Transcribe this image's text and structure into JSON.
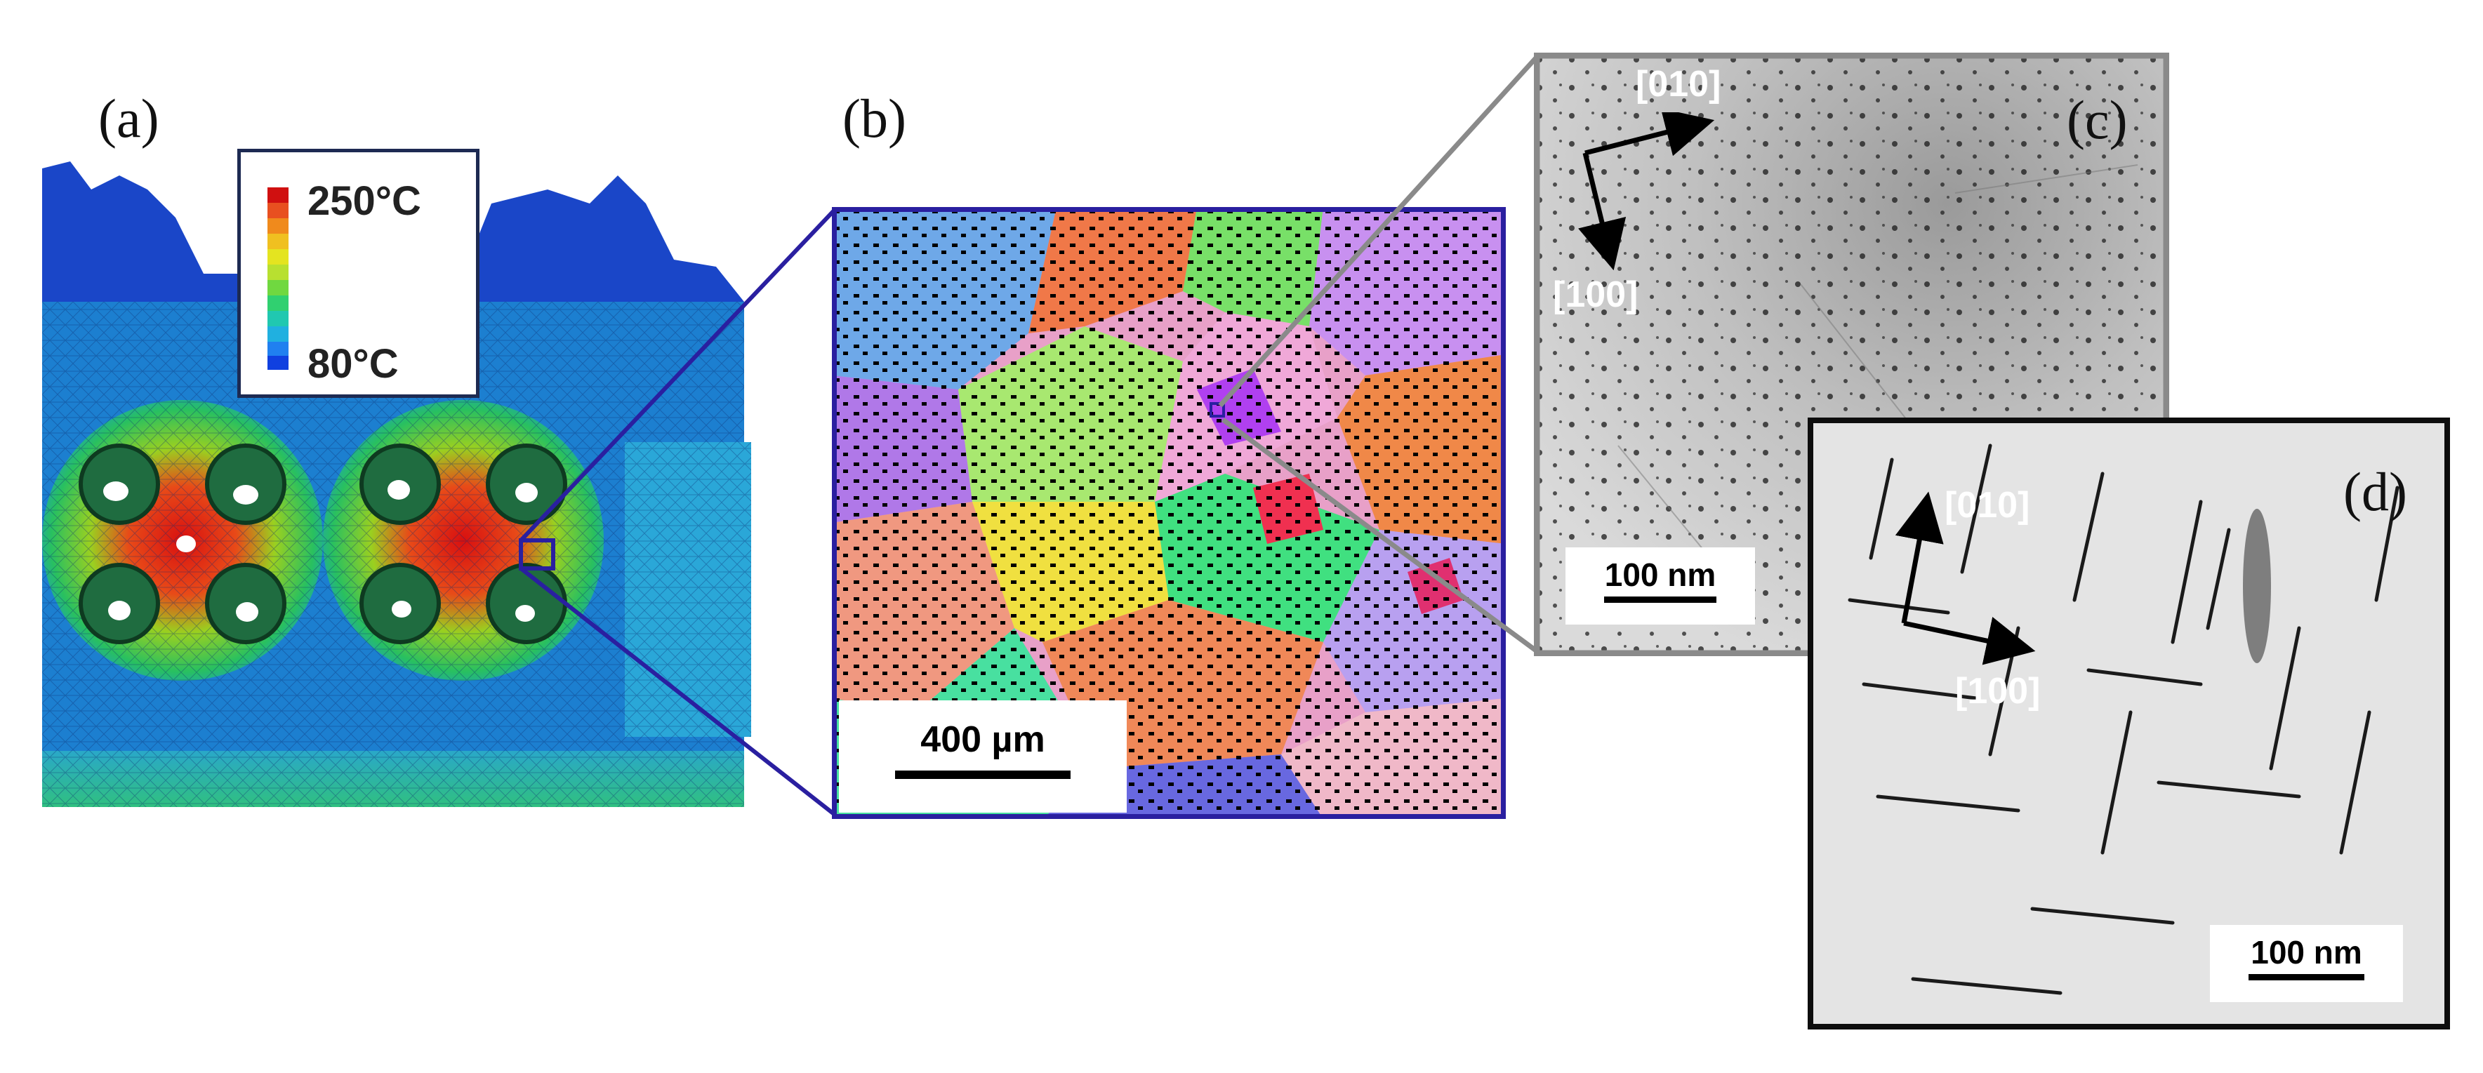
{
  "figure": {
    "panels": {
      "a": {
        "label": "(a)",
        "legend": {
          "max_label": "250°C",
          "min_label": "80°C"
        },
        "colors": [
          "#d01010",
          "#e85020",
          "#f08a1c",
          "#f0c020",
          "#e4e420",
          "#b8e030",
          "#70d840",
          "#30d070",
          "#20c8b0",
          "#20b0e0",
          "#2080f0",
          "#1040e0"
        ]
      },
      "b": {
        "label": "(b)",
        "scale_bar": "400 µm"
      },
      "c": {
        "label": "(c)",
        "dir_top": "[010]",
        "dir_side": "[100]",
        "scale_bar": "100 nm"
      },
      "d": {
        "label": "(d)",
        "dir_top": "[010]",
        "dir_side": "[100]",
        "scale_bar": "100 nm"
      }
    },
    "colors": {
      "zoom_line_blue": "#2a1fa0",
      "zoom_line_gray": "#8a8a8a",
      "frame_d": "#0d0d0d"
    }
  }
}
